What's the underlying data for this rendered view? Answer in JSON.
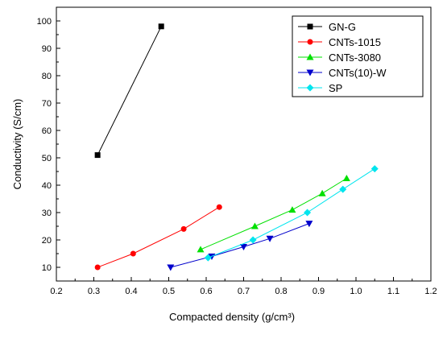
{
  "chart_data": {
    "type": "scatter",
    "xlabel": "Compacted density (g/cm³)",
    "ylabel": "Conductivity (S/cm)",
    "xlim": [
      0.2,
      1.2
    ],
    "ylim": [
      5,
      105
    ],
    "xticks": [
      "0.2",
      "0.3",
      "0.4",
      "0.5",
      "0.6",
      "0.7",
      "0.8",
      "0.9",
      "1.0",
      "1.1",
      "1.2"
    ],
    "yticks": [
      "10",
      "20",
      "30",
      "40",
      "50",
      "60",
      "70",
      "80",
      "90",
      "100"
    ],
    "legend_position": "top-right",
    "grid": false,
    "series": [
      {
        "name": "GN-G",
        "color": "#000000",
        "marker": "square",
        "x": [
          0.31,
          0.48
        ],
        "y": [
          51,
          98
        ]
      },
      {
        "name": "CNTs-1015",
        "color": "#ff0000",
        "marker": "circle",
        "x": [
          0.31,
          0.405,
          0.54,
          0.635
        ],
        "y": [
          10,
          15,
          24,
          32
        ]
      },
      {
        "name": "CNTs-3080",
        "color": "#00e000",
        "marker": "triangle-up",
        "x": [
          0.585,
          0.73,
          0.83,
          0.91,
          0.975
        ],
        "y": [
          16.5,
          25,
          31,
          37,
          42.5
        ]
      },
      {
        "name": "CNTs(10)-W",
        "color": "#0000cc",
        "marker": "triangle-down",
        "x": [
          0.505,
          0.615,
          0.7,
          0.77,
          0.875
        ],
        "y": [
          10,
          14,
          17.5,
          20.5,
          26
        ]
      },
      {
        "name": "SP",
        "color": "#00e5ee",
        "marker": "diamond",
        "x": [
          0.605,
          0.725,
          0.87,
          0.965,
          1.05
        ],
        "y": [
          13.5,
          20,
          30,
          38.5,
          46
        ]
      }
    ]
  }
}
